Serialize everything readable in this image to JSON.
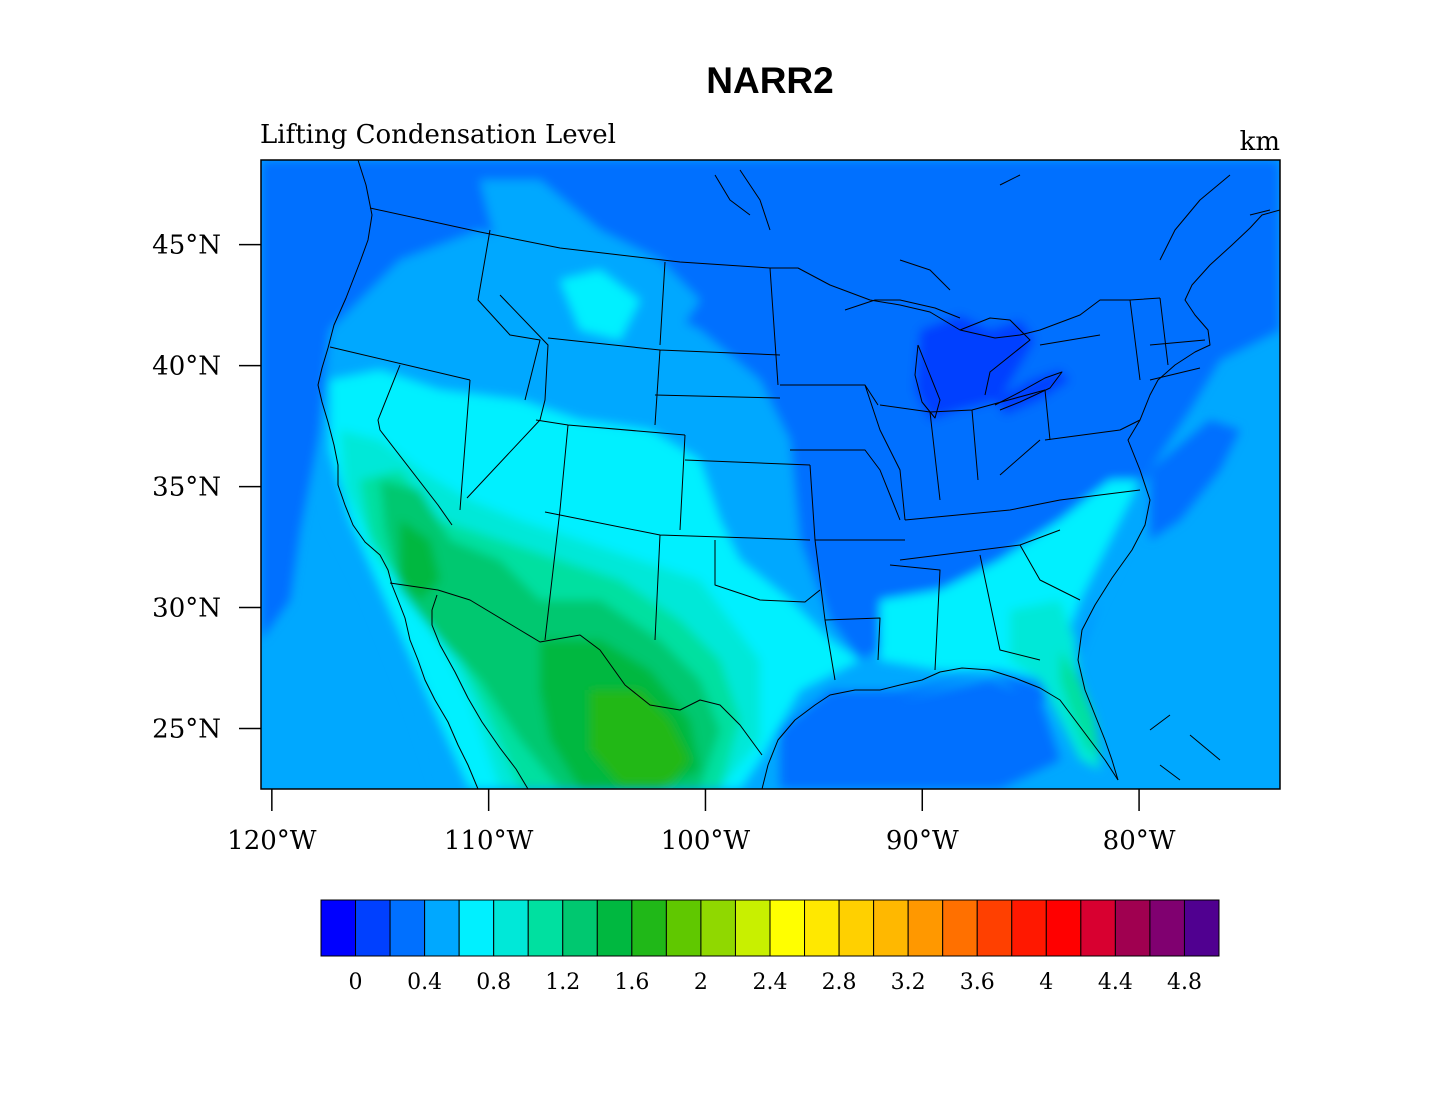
{
  "title": "NARR2",
  "left_subtitle": "Lifting Condensation Level",
  "units": "km",
  "map": {
    "region": "Contiguous United States",
    "lon_range": [
      -120.5,
      -73.5
    ],
    "lat_range": [
      22.5,
      48.5
    ],
    "field": "Lifting Condensation Level",
    "lat_ticks": [
      {
        "value": 45,
        "label": "45°N"
      },
      {
        "value": 40,
        "label": "40°N"
      },
      {
        "value": 35,
        "label": "35°N"
      },
      {
        "value": 30,
        "label": "30°N"
      },
      {
        "value": 25,
        "label": "25°N"
      }
    ],
    "lon_ticks": [
      {
        "value": -120,
        "label": "120°W"
      },
      {
        "value": -110,
        "label": "110°W"
      },
      {
        "value": -100,
        "label": "100°W"
      },
      {
        "value": -90,
        "label": "90°W"
      },
      {
        "value": -80,
        "label": "80°W"
      }
    ]
  },
  "colorbar": {
    "colors": [
      "#0000ff",
      "#0040ff",
      "#0070ff",
      "#00a8ff",
      "#00f0ff",
      "#00e8d8",
      "#00e0a0",
      "#00c870",
      "#00b840",
      "#20b818",
      "#60c800",
      "#90d800",
      "#c8f000",
      "#ffff00",
      "#ffe800",
      "#ffd000",
      "#ffb800",
      "#ff9800",
      "#ff7000",
      "#ff4000",
      "#ff1800",
      "#ff0000",
      "#d80030",
      "#a00050",
      "#800070",
      "#500090"
    ],
    "labels": [
      "0",
      "0.4",
      "0.8",
      "1.2",
      "1.6",
      "2",
      "2.4",
      "2.8",
      "3.2",
      "3.6",
      "4",
      "4.4",
      "4.8"
    ]
  }
}
